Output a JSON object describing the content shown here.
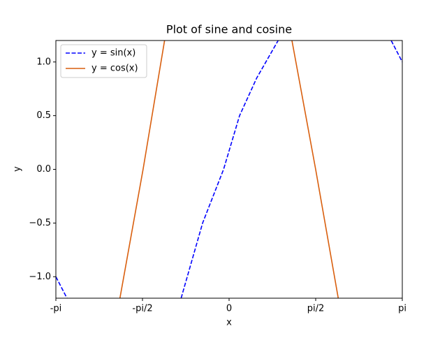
{
  "chart_data": {
    "type": "line",
    "title": "Plot of sine and cosine",
    "xlabel": "x",
    "ylabel": "y",
    "series": [
      {
        "name": "y = sin(x)",
        "color": "#0000ff",
        "dash": "dashed",
        "x": [
          -3.1416,
          -2.94,
          -1.9,
          -0.87,
          -0.48,
          -0.1,
          0.19,
          0.5,
          0.89,
          1.9,
          2.94,
          3.1416
        ],
        "values": [
          -1.0,
          -1.2,
          null,
          -1.2,
          -0.5,
          0,
          0.5,
          0.85,
          1.2,
          null,
          1.2,
          1.0
        ]
      },
      {
        "name": "y = cos(x)",
        "color": "#d95f0e",
        "dash": "solid",
        "x": [
          -1.98,
          -1.56,
          -1.17,
          0,
          1.14,
          1.57,
          1.98
        ],
        "values": [
          -1.2,
          0,
          1.2,
          null,
          1.2,
          0,
          -1.2
        ]
      }
    ],
    "xlim": [
      -3.1416,
      3.1416
    ],
    "xticks": [
      {
        "value": -3.1416,
        "label": "-pi"
      },
      {
        "value": -1.5708,
        "label": "-pi/2"
      },
      0,
      {
        "value": 1.5708,
        "label": "pi/2"
      },
      {
        "value": 3.1416,
        "label": "pi"
      }
    ],
    "ylim": [
      -1.2,
      1.2
    ],
    "yticks": [
      {
        "value": -1,
        "label": "−1.0"
      },
      {
        "value": -0.5,
        "label": "−0.5"
      },
      {
        "value": 0,
        "label": "0.0"
      },
      {
        "value": 0.5,
        "label": "0.5"
      },
      {
        "value": 1,
        "label": "1.0"
      }
    ],
    "legend": "upper left",
    "grid": false
  }
}
